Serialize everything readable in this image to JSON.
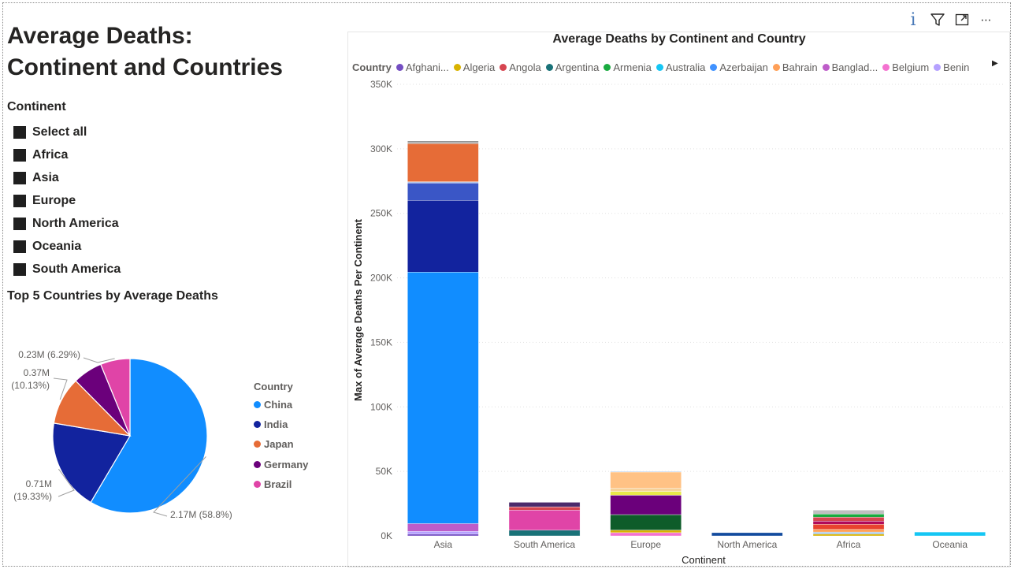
{
  "page": {
    "title_line1": "Average Deaths:",
    "title_line2": "Continent and Countries"
  },
  "toolbar": {
    "icons": [
      "info-icon",
      "filter-icon",
      "focus-mode-icon",
      "more-options-icon"
    ],
    "info_glyph": "i",
    "more_glyph": "⋯"
  },
  "slicer": {
    "header": "Continent",
    "items": [
      "Select all",
      "Africa",
      "Asia",
      "Europe",
      "North America",
      "Oceania",
      "South America"
    ],
    "checkbox_color": "#1f1f1f"
  },
  "pie": {
    "title": "Top 5 Countries by Average Deaths",
    "legend_title": "Country",
    "slices": [
      {
        "name": "China",
        "value": 2.17,
        "label1": "2.17M (58.8%)",
        "label2": "",
        "color": "#118DFF"
      },
      {
        "name": "India",
        "value": 0.71,
        "label1": "0.71M",
        "label2": "(19.33%)",
        "color": "#12239E"
      },
      {
        "name": "Japan",
        "value": 0.37,
        "label1": "0.37M",
        "label2": "(10.13%)",
        "color": "#E66C37"
      },
      {
        "name": "Germany",
        "value": 0.23,
        "label1": "",
        "label2": "",
        "color": "#6B007B"
      },
      {
        "name": "Brazil",
        "value": 0.23,
        "label1": "0.23M (6.29%)",
        "label2": "",
        "color": "#E044A7"
      }
    ]
  },
  "bar": {
    "title": "Average Deaths by Continent and Country",
    "legend_title": "Country",
    "legend": [
      {
        "name": "Afghani...",
        "color": "#744EC2"
      },
      {
        "name": "Algeria",
        "color": "#D9B300"
      },
      {
        "name": "Angola",
        "color": "#D64550"
      },
      {
        "name": "Argentina",
        "color": "#197278"
      },
      {
        "name": "Armenia",
        "color": "#1AAB40"
      },
      {
        "name": "Australia",
        "color": "#15C6F4"
      },
      {
        "name": "Azerbaijan",
        "color": "#4092FF"
      },
      {
        "name": "Bahrain",
        "color": "#FFA058"
      },
      {
        "name": "Banglad...",
        "color": "#BE5DC9"
      },
      {
        "name": "Belgium",
        "color": "#F472D0"
      },
      {
        "name": "Benin",
        "color": "#B5A1FF"
      }
    ],
    "legend_arrow": "▶"
  },
  "chart_data": {
    "type": "bar",
    "stacked": true,
    "title": "Average Deaths by Continent and Country",
    "xlabel": "Continent",
    "ylabel": "Max of Average Deaths Per Continent",
    "ylim": [
      0,
      350000
    ],
    "yticks": [
      0,
      50000,
      100000,
      150000,
      200000,
      250000,
      300000,
      350000
    ],
    "ytick_labels": [
      "0K",
      "50K",
      "100K",
      "150K",
      "200K",
      "250K",
      "300K",
      "350K"
    ],
    "grid": true,
    "legend_position": "top",
    "categories": [
      "Asia",
      "South America",
      "Europe",
      "North America",
      "Africa",
      "Oceania"
    ],
    "stacks": [
      [
        {
          "value": 1500,
          "color": "#744EC2"
        },
        {
          "value": 2000,
          "color": "#B5A1FF"
        },
        {
          "value": 6000,
          "color": "#BE5DC9"
        },
        {
          "value": 195000,
          "color": "#118DFF"
        },
        {
          "value": 55500,
          "color": "#12239E"
        },
        {
          "value": 13500,
          "color": "#3A56C6"
        },
        {
          "value": 1000,
          "color": "#B7C7E8"
        },
        {
          "value": 29500,
          "color": "#E66C37"
        },
        {
          "value": 1000,
          "color": "#A0A0A0"
        },
        {
          "value": 1000,
          "color": "#7A7A7A"
        }
      ],
      [
        {
          "value": 4500,
          "color": "#197278"
        },
        {
          "value": 15500,
          "color": "#E044A7"
        },
        {
          "value": 2500,
          "color": "#D64550"
        },
        {
          "value": 3500,
          "color": "#4B2A6B"
        }
      ],
      [
        {
          "value": 2500,
          "color": "#F472D0"
        },
        {
          "value": 2000,
          "color": "#D9B300"
        },
        {
          "value": 12000,
          "color": "#0E5C2A"
        },
        {
          "value": 15000,
          "color": "#6B007B"
        },
        {
          "value": 3000,
          "color": "#E8E84A"
        },
        {
          "value": 2500,
          "color": "#F5D29A"
        },
        {
          "value": 12500,
          "color": "#FFC285"
        },
        {
          "value": 500,
          "color": "#7FA6D8"
        }
      ],
      [
        {
          "value": 2500,
          "color": "#134B9E"
        }
      ],
      [
        {
          "value": 1500,
          "color": "#D9B300"
        },
        {
          "value": 1500,
          "color": "#A0C4E8"
        },
        {
          "value": 2000,
          "color": "#FFA058"
        },
        {
          "value": 4000,
          "color": "#E8432E"
        },
        {
          "value": 2500,
          "color": "#B00A5A"
        },
        {
          "value": 3000,
          "color": "#D64550"
        },
        {
          "value": 2500,
          "color": "#1AAB40"
        },
        {
          "value": 3000,
          "color": "#C0C0C0"
        }
      ],
      [
        {
          "value": 3000,
          "color": "#15C6F4"
        }
      ]
    ]
  }
}
